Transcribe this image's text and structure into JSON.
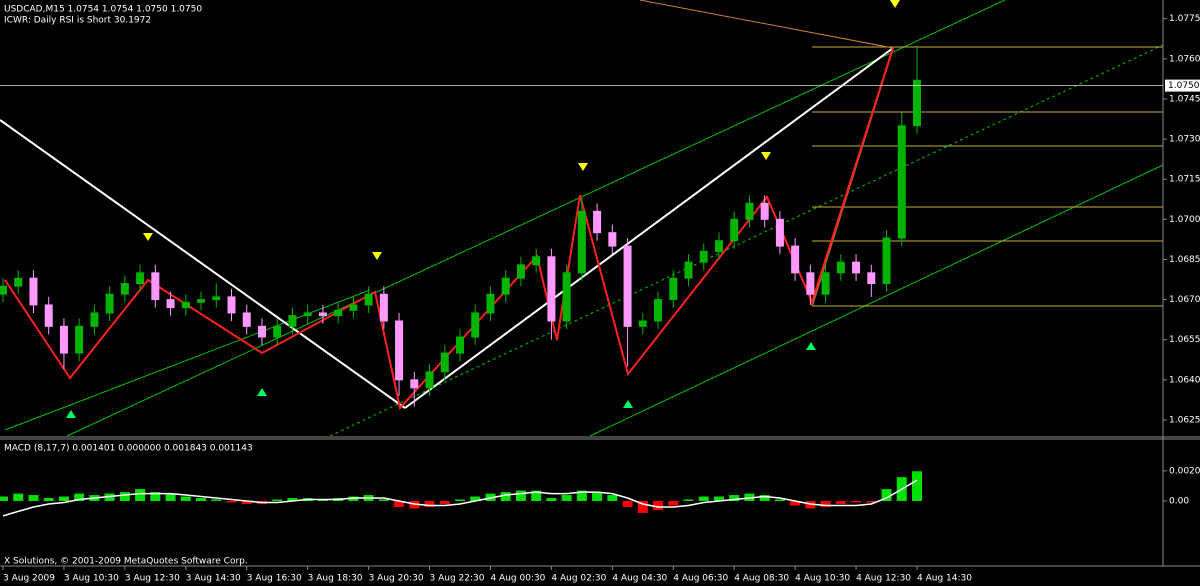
{
  "chart_data": [
    {
      "type": "candlestick",
      "title": "USDCAD,M15  1.0754 1.0754 1.0750 1.0750",
      "subtitle": "ICWR: Daily RSI is Short 30.1972",
      "categories": [
        "3 Aug 2009",
        null,
        null,
        null,
        "3 Aug 10:30",
        null,
        null,
        null,
        "3 Aug 12:30",
        null,
        null,
        null,
        "3 Aug 14:30",
        null,
        null,
        null,
        "3 Aug 16:30",
        null,
        null,
        null,
        "3 Aug 18:30",
        null,
        null,
        null,
        "3 Aug 20:30",
        null,
        null,
        null,
        "3 Aug 22:30",
        null,
        null,
        null,
        "4 Aug 00:30",
        null,
        null,
        null,
        "4 Aug 02:30",
        null,
        null,
        null,
        "4 Aug 04:30",
        null,
        null,
        null,
        "4 Aug 06:30",
        null,
        null,
        null,
        "4 Aug 08:30",
        null,
        null,
        null,
        "4 Aug 10:30",
        null,
        null,
        null,
        "4 Aug 12:30",
        null,
        null,
        null,
        "4 Aug 14:30"
      ],
      "open": [
        1.0672,
        1.0675,
        1.0678,
        1.0668,
        1.066,
        1.065,
        1.066,
        1.0665,
        1.0672,
        1.0676,
        1.068,
        1.067,
        1.0667,
        1.0669,
        1.067,
        1.0671,
        1.0665,
        1.066,
        1.0656,
        1.066,
        1.0664,
        1.0665,
        1.0664,
        1.0666,
        1.0668,
        1.0672,
        1.0662,
        1.064,
        1.0637,
        1.0643,
        1.065,
        1.0656,
        1.0665,
        1.0672,
        1.0678,
        1.0683,
        1.0686,
        1.0662,
        1.068,
        1.0703,
        1.0695,
        1.069,
        1.066,
        1.0662,
        1.067,
        1.0678,
        1.0684,
        1.0688,
        1.0692,
        1.07,
        1.0706,
        1.07,
        1.069,
        1.068,
        1.0672,
        1.068,
        1.0684,
        1.068,
        1.0676,
        1.0693,
        1.0735
      ],
      "high": [
        1.0678,
        1.0681,
        1.0681,
        1.0671,
        1.0663,
        1.0663,
        1.0668,
        1.0675,
        1.0679,
        1.0683,
        1.0683,
        1.0673,
        1.0672,
        1.0673,
        1.0676,
        1.0674,
        1.0668,
        1.0663,
        1.0663,
        1.0667,
        1.0668,
        1.0668,
        1.0669,
        1.0671,
        1.0675,
        1.0675,
        1.0665,
        1.0643,
        1.0646,
        1.0653,
        1.0659,
        1.0668,
        1.0675,
        1.0681,
        1.0686,
        1.0689,
        1.0689,
        1.0683,
        1.0708,
        1.0706,
        1.0698,
        1.0693,
        1.0665,
        1.0673,
        1.0681,
        1.0687,
        1.0691,
        1.0695,
        1.0703,
        1.0709,
        1.0709,
        1.0703,
        1.0693,
        1.0683,
        1.0683,
        1.0687,
        1.0687,
        1.0683,
        1.0696,
        1.074,
        1.0765
      ],
      "low": [
        1.0669,
        1.0672,
        1.0665,
        1.0657,
        1.0644,
        1.0647,
        1.0657,
        1.0662,
        1.0669,
        1.0673,
        1.0667,
        1.0664,
        1.0664,
        1.0666,
        1.0667,
        1.0662,
        1.0657,
        1.0653,
        1.0653,
        1.0657,
        1.0661,
        1.0661,
        1.0661,
        1.0663,
        1.0665,
        1.0659,
        1.0634,
        1.063,
        1.0634,
        1.064,
        1.0647,
        1.0653,
        1.0662,
        1.0669,
        1.0675,
        1.068,
        1.0655,
        1.0659,
        1.0677,
        1.0692,
        1.0687,
        1.0645,
        1.0657,
        1.0659,
        1.0667,
        1.0675,
        1.0681,
        1.0685,
        1.0689,
        1.0697,
        1.0697,
        1.0687,
        1.0677,
        1.0668,
        1.0669,
        1.0677,
        1.0677,
        1.0671,
        1.0673,
        1.069,
        1.0732
      ],
      "close": [
        1.0675,
        1.0678,
        1.0668,
        1.066,
        1.065,
        1.066,
        1.0665,
        1.0672,
        1.0676,
        1.068,
        1.067,
        1.0667,
        1.0669,
        1.067,
        1.0671,
        1.0665,
        1.066,
        1.0656,
        1.066,
        1.0664,
        1.0665,
        1.0664,
        1.0666,
        1.0668,
        1.0672,
        1.0662,
        1.064,
        1.0637,
        1.0643,
        1.065,
        1.0656,
        1.0665,
        1.0672,
        1.0678,
        1.0683,
        1.0686,
        1.0662,
        1.068,
        1.0703,
        1.0695,
        1.069,
        1.066,
        1.0662,
        1.067,
        1.0678,
        1.0684,
        1.0688,
        1.0692,
        1.07,
        1.0706,
        1.07,
        1.069,
        1.068,
        1.0672,
        1.068,
        1.0684,
        1.068,
        1.0676,
        1.0693,
        1.0735,
        1.0752
      ],
      "color_up": "#00b400",
      "color_down": "#ff99ff",
      "ylim": [
        1.0619,
        1.0782
      ],
      "yticks": [
        1.0775,
        {
          "value": 1.076,
          "label": "1.0760"
        },
        1.0745,
        {
          "value": 1.073,
          "label": "1.0730"
        },
        1.0715,
        {
          "value": 1.07,
          "label": "1.0700"
        },
        1.0685,
        {
          "value": 1.067,
          "label": "1.0670"
        },
        1.0655,
        {
          "value": 1.064,
          "label": "1.0640"
        },
        1.0625
      ],
      "current_price": {
        "value": 1.075,
        "label": "1.0750"
      }
    },
    {
      "type": "macd",
      "title": "MACD  (8,17,7) 0.001401 0.000000 0.001843 0.001143",
      "values": [
        0.0003,
        0.0005,
        0.0004,
        0.0002,
        0.0003,
        0.0005,
        0.0004,
        0.0005,
        0.0006,
        0.0008,
        0.0006,
        0.0005,
        0.0003,
        0.0002,
        0.0001,
        -0.0001,
        -0.0002,
        -0.0002,
        0.0001,
        0.0002,
        0.0002,
        0.0001,
        0.0002,
        0.0003,
        0.0004,
        0.0001,
        -0.0004,
        -0.0005,
        -0.0004,
        -0.0002,
        0.0001,
        0.0003,
        0.0005,
        0.0006,
        0.0007,
        0.0007,
        0.0002,
        0.0004,
        0.0007,
        0.0006,
        0.0004,
        -0.0004,
        -0.0008,
        -0.0006,
        -0.0003,
        0.0001,
        0.0003,
        0.0003,
        0.0004,
        0.0005,
        0.0004,
        0.0001,
        -0.0003,
        -0.0005,
        -0.0004,
        -0.0002,
        -0.0001,
        -0.0001,
        0.0008,
        0.0016,
        0.002
      ],
      "color_up": "#00e000",
      "color_down": "#ff0000",
      "signal": {
        "color": "#ffffff",
        "values": [
          -0.001,
          -0.0007,
          -0.0004,
          -0.0002,
          -0.0001,
          0.0001,
          0.0002,
          0.0003,
          0.0004,
          0.0005,
          0.0005,
          0.0005,
          0.0004,
          0.0003,
          0.0002,
          0.0001,
          0.0,
          -0.0001,
          -0.0001,
          0.0,
          0.0001,
          0.0001,
          0.0001,
          0.0002,
          0.0002,
          0.0002,
          0.0,
          -0.0002,
          -0.0003,
          -0.0003,
          -0.0002,
          0.0,
          0.0002,
          0.0004,
          0.0005,
          0.0006,
          0.0005,
          0.0005,
          0.0006,
          0.0006,
          0.0005,
          0.0002,
          -0.0002,
          -0.0004,
          -0.0004,
          -0.0003,
          -0.0001,
          0.0,
          0.0001,
          0.0002,
          0.0003,
          0.0002,
          0.0,
          -0.0002,
          -0.0003,
          -0.0003,
          -0.0003,
          -0.0002,
          0.0002,
          0.0008,
          0.0014
        ]
      },
      "ylim": [
        -0.0041,
        0.0041
      ],
      "yticks": [
        0.00203,
        {
          "value": 0,
          "label": "0.00"
        }
      ]
    }
  ],
  "copyright": "X Solutions, © 2001-2009 MetaQuotes Software Corp."
}
